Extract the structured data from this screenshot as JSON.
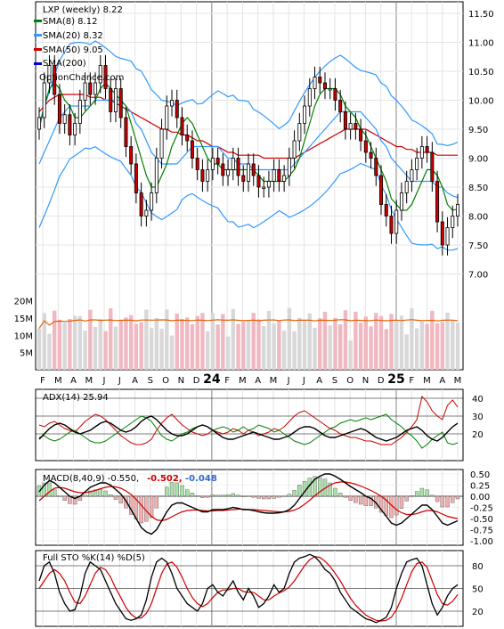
{
  "chart_data": {
    "type": "candlestick",
    "symbol_label": "LXP (weekly) 8.22",
    "watermark": "OptionChance.com",
    "year_labels": [
      "24",
      "25"
    ],
    "x_tick_labels": [
      "F",
      "M",
      "A",
      "M",
      "J",
      "J",
      "A",
      "S",
      "O",
      "N",
      "D",
      "24",
      "F",
      "M",
      "A",
      "M",
      "J",
      "J",
      "A",
      "S",
      "O",
      "N",
      "D",
      "25",
      "F",
      "M",
      "A",
      "M"
    ],
    "colors": {
      "up_candle": "#000000",
      "down_candle": "#cc0000",
      "sma8": "#008000",
      "sma20": "#3399ff",
      "sma50": "#cc0000",
      "sma200": "#0000cc",
      "bb_band": "#3399ff",
      "yellow": "#e6e600",
      "purple": "#9933cc",
      "volume_up": "#d8d8d8",
      "volume_down": "#f0b8c0",
      "volume_avg": "#e06000"
    },
    "panels": {
      "price": {
        "legend": [
          "SMA(8) 8.12",
          "SMA(20) 8.32",
          "SMA(50) 9.05",
          "SMA(200)"
        ],
        "ylim": [
          6.5,
          11.7
        ],
        "y_ticks": [
          "11.50",
          "11.00",
          "10.50",
          "10.00",
          "9.50",
          "9.00",
          "8.50",
          "8.00",
          "7.50",
          "7.00"
        ],
        "closes": [
          9.7,
          10.3,
          10.6,
          10.1,
          9.6,
          9.75,
          9.4,
          9.6,
          10.0,
          10.3,
          10.1,
          10.3,
          10.6,
          10.2,
          9.8,
          10.2,
          9.7,
          9.2,
          8.9,
          8.4,
          8.0,
          8.1,
          8.4,
          9.0,
          9.5,
          9.9,
          10.0,
          9.7,
          9.4,
          9.3,
          9.0,
          8.8,
          8.6,
          8.8,
          9.0,
          8.9,
          8.7,
          8.8,
          9.0,
          8.7,
          8.6,
          8.9,
          8.7,
          8.5,
          8.5,
          8.6,
          8.8,
          8.6,
          8.7,
          9.0,
          9.3,
          9.6,
          9.9,
          10.2,
          10.4,
          10.3,
          10.2,
          10.2,
          10.0,
          9.8,
          9.5,
          9.6,
          9.5,
          9.3,
          9.1,
          9.0,
          8.7,
          8.2,
          8.0,
          7.7,
          8.1,
          8.4,
          8.6,
          8.8,
          9.0,
          9.2,
          9.1,
          8.6,
          7.9,
          7.5,
          7.8,
          8.0,
          8.2
        ],
        "sma8_values": [
          9.5,
          9.9,
          10.2,
          10.3,
          10.2,
          10.0,
          9.9,
          9.7,
          9.7,
          9.8,
          9.9,
          10.0,
          10.2,
          10.3,
          10.2,
          10.1,
          10.0,
          9.9,
          9.6,
          9.3,
          9.0,
          8.7,
          8.5,
          8.5,
          8.7,
          8.9,
          9.2,
          9.4,
          9.6,
          9.7,
          9.6,
          9.4,
          9.2,
          9.0,
          8.9,
          8.9,
          8.8,
          8.8,
          8.8,
          8.8,
          8.8,
          8.8,
          8.8,
          8.7,
          8.6,
          8.6,
          8.6,
          8.6,
          8.6,
          8.7,
          8.8,
          9.0,
          9.3,
          9.6,
          9.9,
          10.1,
          10.2,
          10.2,
          10.2,
          10.1,
          9.9,
          9.8,
          9.7,
          9.5,
          9.4,
          9.2,
          9.0,
          8.8,
          8.6,
          8.3,
          8.2,
          8.1,
          8.1,
          8.2,
          8.4,
          8.6,
          8.8,
          8.8,
          8.7,
          8.5,
          8.2,
          8.1,
          8.12
        ],
        "sma20_values": [
          8.9,
          9.1,
          9.3,
          9.5,
          9.7,
          9.8,
          9.9,
          9.9,
          9.9,
          9.9,
          9.9,
          10.0,
          10.0,
          10.0,
          10.0,
          10.0,
          10.0,
          9.9,
          9.8,
          9.6,
          9.5,
          9.3,
          9.1,
          9.0,
          8.9,
          8.9,
          8.9,
          8.9,
          9.0,
          9.1,
          9.2,
          9.2,
          9.2,
          9.2,
          9.2,
          9.2,
          9.1,
          9.0,
          9.0,
          8.9,
          8.9,
          8.9,
          8.8,
          8.8,
          8.8,
          8.8,
          8.8,
          8.8,
          8.8,
          8.8,
          8.9,
          9.0,
          9.1,
          9.2,
          9.3,
          9.4,
          9.5,
          9.6,
          9.7,
          9.8,
          9.8,
          9.8,
          9.8,
          9.8,
          9.7,
          9.6,
          9.5,
          9.3,
          9.2,
          9.0,
          8.9,
          8.8,
          8.7,
          8.6,
          8.6,
          8.6,
          8.6,
          8.6,
          8.5,
          8.5,
          8.4,
          8.35,
          8.32
        ],
        "sma50_values": [
          9.8,
          9.9,
          10.0,
          10.05,
          10.1,
          10.1,
          10.1,
          10.1,
          10.1,
          10.1,
          10.05,
          10.05,
          10.05,
          10.0,
          10.0,
          9.95,
          9.9,
          9.85,
          9.8,
          9.75,
          9.7,
          9.65,
          9.6,
          9.55,
          9.5,
          9.5,
          9.45,
          9.45,
          9.4,
          9.4,
          9.35,
          9.3,
          9.3,
          9.25,
          9.2,
          9.2,
          9.15,
          9.1,
          9.1,
          9.05,
          9.05,
          9.05,
          9.05,
          9.05,
          9.0,
          9.0,
          9.0,
          9.0,
          9.0,
          9.0,
          9.0,
          9.05,
          9.1,
          9.15,
          9.2,
          9.25,
          9.3,
          9.35,
          9.4,
          9.45,
          9.5,
          9.5,
          9.5,
          9.5,
          9.5,
          9.45,
          9.4,
          9.35,
          9.3,
          9.25,
          9.2,
          9.2,
          9.15,
          9.15,
          9.1,
          9.1,
          9.1,
          9.1,
          9.05,
          9.05,
          9.05,
          9.05,
          9.05
        ]
      },
      "volume": {
        "y_ticks": [
          "20M",
          "15M",
          "10M",
          "5M"
        ],
        "ylim": [
          0,
          22
        ]
      },
      "adx": {
        "label": "ADX(14) 25.94",
        "y_ticks": [
          "40",
          "30",
          "20"
        ],
        "ylim": [
          5,
          45
        ],
        "adx_values": [
          17,
          20,
          23,
          25,
          26,
          25,
          23,
          21,
          20,
          21,
          22,
          24,
          26,
          27,
          26,
          24,
          22,
          21,
          22,
          24,
          27,
          29,
          30,
          28,
          25,
          22,
          20,
          19,
          19,
          20,
          22,
          24,
          25,
          24,
          22,
          20,
          18,
          17,
          17,
          18,
          19,
          20,
          21,
          20,
          19,
          18,
          17,
          17,
          18,
          19,
          21,
          23,
          24,
          24,
          23,
          21,
          19,
          18,
          18,
          19,
          20,
          21,
          22,
          23,
          22,
          20,
          18,
          17,
          16,
          17,
          18,
          20,
          22,
          23,
          24,
          22,
          19,
          17,
          16,
          18,
          21,
          24,
          25.94
        ],
        "plus_di_values": [
          25,
          24,
          26,
          27,
          25,
          23,
          22,
          21,
          24,
          27,
          29,
          31,
          30,
          28,
          25,
          22,
          19,
          17,
          15,
          14,
          14,
          15,
          17,
          22,
          26,
          29,
          31,
          28,
          25,
          23,
          21,
          20,
          19,
          20,
          22,
          21,
          20,
          21,
          23,
          22,
          20,
          22,
          21,
          19,
          20,
          21,
          23,
          22,
          24,
          27,
          30,
          32,
          33,
          31,
          29,
          27,
          25,
          23,
          22,
          20,
          19,
          18,
          18,
          17,
          16,
          16,
          15,
          14,
          14,
          14,
          16,
          18,
          21,
          24,
          28,
          41,
          38,
          33,
          30,
          28,
          36,
          39,
          35
        ],
        "minus_di_values": [
          18,
          19,
          17,
          16,
          17,
          19,
          21,
          22,
          20,
          18,
          16,
          15,
          15,
          16,
          18,
          20,
          22,
          24,
          26,
          28,
          30,
          29,
          27,
          23,
          19,
          17,
          16,
          18,
          20,
          21,
          23,
          24,
          25,
          24,
          22,
          23,
          24,
          23,
          21,
          22,
          24,
          22,
          23,
          25,
          24,
          23,
          21,
          22,
          20,
          18,
          16,
          15,
          14,
          15,
          17,
          19,
          21,
          23,
          24,
          26,
          27,
          28,
          27,
          28,
          29,
          28,
          29,
          30,
          31,
          28,
          26,
          24,
          21,
          19,
          16,
          12,
          14,
          17,
          19,
          21,
          15,
          14,
          15
        ]
      },
      "macd": {
        "label": "MACD(8,40,9) -0.550,",
        "macd_value_label": "-0.502,",
        "signal_value_label": "-0.048",
        "y_ticks": [
          "0.50",
          "0.25",
          "0.00",
          "-0.25",
          "-0.50",
          "-0.75",
          "-1.00"
        ],
        "ylim": [
          -1.1,
          0.6
        ],
        "macd_values": [
          0.1,
          0.25,
          0.35,
          0.3,
          0.2,
          0.1,
          0.0,
          -0.05,
          0.0,
          0.1,
          0.2,
          0.25,
          0.3,
          0.3,
          0.25,
          0.15,
          0.05,
          -0.1,
          -0.3,
          -0.5,
          -0.7,
          -0.8,
          -0.85,
          -0.75,
          -0.55,
          -0.35,
          -0.2,
          -0.15,
          -0.15,
          -0.2,
          -0.25,
          -0.3,
          -0.35,
          -0.35,
          -0.3,
          -0.3,
          -0.3,
          -0.28,
          -0.25,
          -0.27,
          -0.3,
          -0.3,
          -0.32,
          -0.35,
          -0.37,
          -0.38,
          -0.38,
          -0.37,
          -0.35,
          -0.3,
          -0.2,
          -0.05,
          0.1,
          0.25,
          0.38,
          0.45,
          0.5,
          0.5,
          0.45,
          0.38,
          0.3,
          0.22,
          0.15,
          0.08,
          0.0,
          -0.05,
          -0.15,
          -0.3,
          -0.45,
          -0.6,
          -0.65,
          -0.6,
          -0.5,
          -0.4,
          -0.3,
          -0.2,
          -0.2,
          -0.3,
          -0.45,
          -0.6,
          -0.65,
          -0.6,
          -0.55
        ],
        "signal_values": [
          -0.1,
          0.0,
          0.1,
          0.18,
          0.2,
          0.18,
          0.14,
          0.1,
          0.08,
          0.08,
          0.1,
          0.13,
          0.17,
          0.2,
          0.22,
          0.21,
          0.18,
          0.12,
          0.04,
          -0.07,
          -0.2,
          -0.33,
          -0.45,
          -0.53,
          -0.55,
          -0.52,
          -0.46,
          -0.4,
          -0.35,
          -0.32,
          -0.31,
          -0.31,
          -0.32,
          -0.33,
          -0.33,
          -0.32,
          -0.32,
          -0.31,
          -0.3,
          -0.29,
          -0.29,
          -0.3,
          -0.3,
          -0.31,
          -0.32,
          -0.33,
          -0.34,
          -0.35,
          -0.35,
          -0.34,
          -0.31,
          -0.26,
          -0.18,
          -0.09,
          0.01,
          0.1,
          0.18,
          0.25,
          0.3,
          0.32,
          0.32,
          0.3,
          0.27,
          0.23,
          0.18,
          0.13,
          0.07,
          0.0,
          -0.09,
          -0.2,
          -0.3,
          -0.37,
          -0.41,
          -0.41,
          -0.39,
          -0.35,
          -0.32,
          -0.32,
          -0.35,
          -0.4,
          -0.45,
          -0.48,
          -0.5
        ]
      },
      "stochastic": {
        "label": "Full STO %K(14) %D(5)",
        "y_ticks": [
          "80",
          "50",
          "20"
        ],
        "ylim": [
          0,
          100
        ],
        "k_values": [
          60,
          80,
          85,
          70,
          45,
          30,
          20,
          22,
          40,
          70,
          85,
          80,
          75,
          60,
          45,
          30,
          20,
          10,
          8,
          10,
          15,
          35,
          65,
          85,
          90,
          85,
          70,
          50,
          40,
          30,
          25,
          20,
          30,
          50,
          55,
          45,
          40,
          50,
          60,
          45,
          35,
          50,
          40,
          25,
          30,
          40,
          55,
          45,
          50,
          70,
          85,
          90,
          92,
          95,
          92,
          85,
          75,
          70,
          60,
          45,
          35,
          25,
          20,
          15,
          10,
          8,
          5,
          8,
          12,
          25,
          50,
          70,
          85,
          88,
          90,
          80,
          55,
          30,
          15,
          25,
          40,
          50,
          55
        ],
        "d_values": [
          50,
          60,
          70,
          75,
          70,
          60,
          45,
          32,
          30,
          40,
          55,
          70,
          78,
          75,
          65,
          50,
          38,
          25,
          16,
          11,
          11,
          17,
          30,
          50,
          70,
          82,
          85,
          78,
          65,
          50,
          38,
          30,
          26,
          30,
          38,
          45,
          48,
          48,
          50,
          50,
          46,
          45,
          45,
          40,
          35,
          35,
          40,
          44,
          47,
          52,
          60,
          70,
          80,
          88,
          92,
          91,
          86,
          79,
          70,
          60,
          48,
          37,
          28,
          21,
          15,
          11,
          8,
          7,
          8,
          12,
          22,
          37,
          55,
          72,
          83,
          85,
          78,
          60,
          42,
          30,
          28,
          33,
          42
        ]
      }
    }
  }
}
